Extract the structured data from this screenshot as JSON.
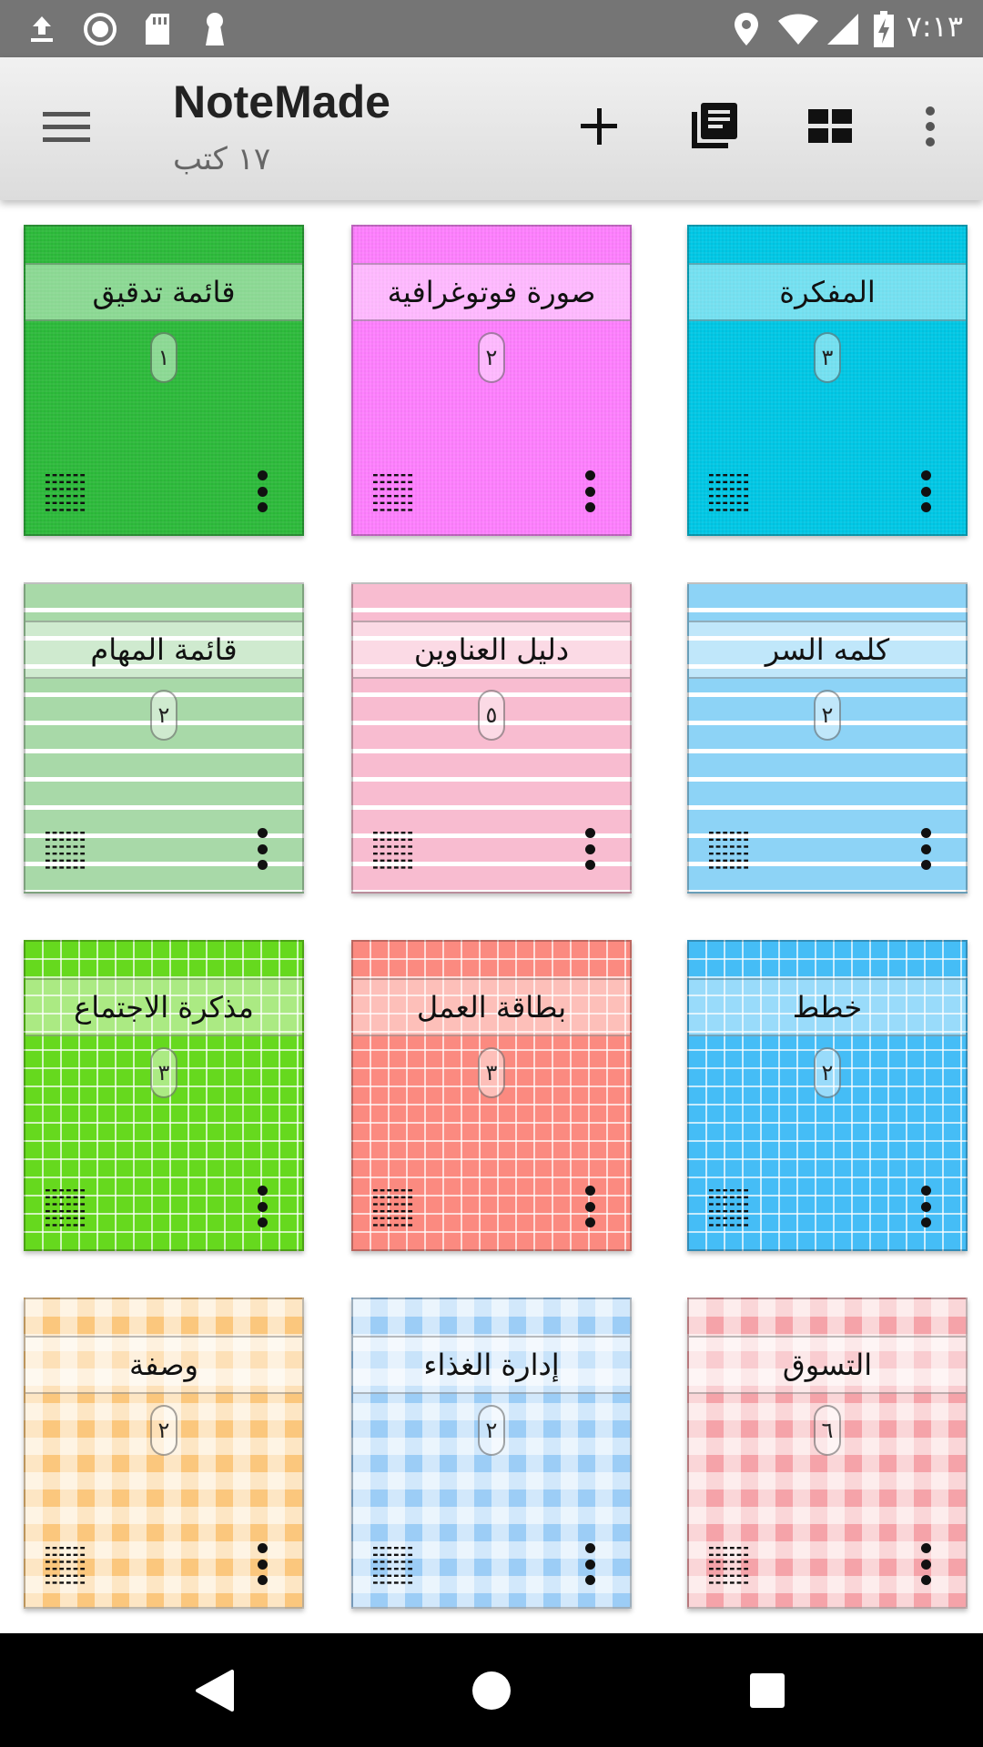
{
  "status_bar": {
    "time": "٧:١٣",
    "icons": [
      "upload-icon",
      "record-icon",
      "sd-card-icon",
      "keyhole-icon",
      "location-icon",
      "wifi-icon",
      "signal-icon",
      "battery-charging-icon"
    ]
  },
  "app_bar": {
    "title": "NoteMade",
    "subtitle": "١٧ كتب",
    "icons": [
      "menu-icon",
      "add-icon",
      "notebooks-icon",
      "grid-view-icon",
      "more-vert-icon"
    ]
  },
  "notebooks": [
    {
      "name": "المفكرة",
      "count": "٣",
      "color": "#00c8e6",
      "pattern": "solid"
    },
    {
      "name": "صورة فوتوغرافية",
      "count": "٢",
      "color": "#ff80ff",
      "pattern": "solid"
    },
    {
      "name": "قائمة تدقيق",
      "count": "١",
      "color": "#2dbb3b",
      "pattern": "solid"
    },
    {
      "name": "كلمه السر",
      "count": "٢",
      "color": "#8dd3f6",
      "pattern": "stripes"
    },
    {
      "name": "دليل العناوين",
      "count": "٥",
      "color": "#f8bcd0",
      "pattern": "stripes"
    },
    {
      "name": "قائمة المهام",
      "count": "٢",
      "color": "#a8d9a8",
      "pattern": "stripes"
    },
    {
      "name": "خطط",
      "count": "٢",
      "color": "#45bdf6",
      "pattern": "grid"
    },
    {
      "name": "بطاقة العمل",
      "count": "٣",
      "color": "#fb8a80",
      "pattern": "grid"
    },
    {
      "name": "مذكرة الاجتماع",
      "count": "٣",
      "color": "#66d91e",
      "pattern": "grid"
    },
    {
      "name": "التسوق",
      "count": "٦",
      "color": "#f5a3a9",
      "pattern": "gingham"
    },
    {
      "name": "إدارة الغذاء",
      "count": "٢",
      "color": "#9ccdf6",
      "pattern": "gingham"
    },
    {
      "name": "وصفة",
      "count": "٢",
      "color": "#fbc77d",
      "pattern": "gingham"
    }
  ],
  "nav_bar": {
    "icons": [
      "back-icon",
      "home-icon",
      "recents-icon"
    ]
  }
}
